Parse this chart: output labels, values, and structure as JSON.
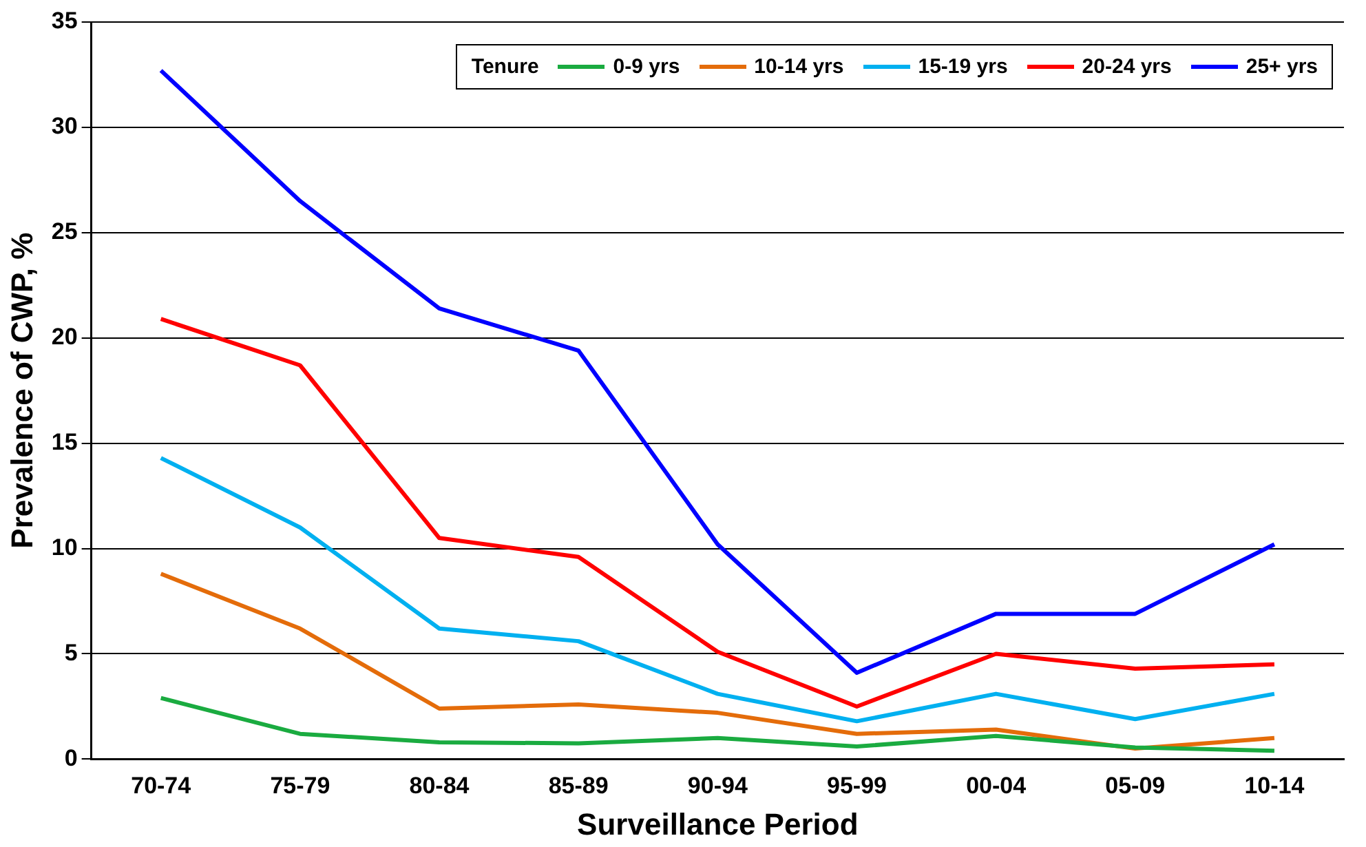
{
  "chart_data": {
    "type": "line",
    "xlabel": "Surveillance Period",
    "ylabel": "Prevalence of CWP, %",
    "legend_title": "Tenure",
    "legend": "top right",
    "grid": "y",
    "marker": "none",
    "line_style": "solid",
    "categories": [
      "70-74",
      "75-79",
      "80-84",
      "85-89",
      "90-94",
      "95-99",
      "00-04",
      "05-09",
      "10-14"
    ],
    "ylim": [
      0,
      35
    ],
    "yticks": [
      0,
      5,
      10,
      15,
      20,
      25,
      30,
      35
    ],
    "series": [
      {
        "name": "0-9 yrs",
        "color": "#1aab40",
        "values": [
          2.9,
          1.2,
          0.8,
          0.75,
          1.0,
          0.6,
          1.1,
          0.55,
          0.4
        ]
      },
      {
        "name": "10-14 yrs",
        "color": "#e46c0a",
        "values": [
          8.8,
          6.2,
          2.4,
          2.6,
          2.2,
          1.2,
          1.4,
          0.5,
          1.0
        ]
      },
      {
        "name": "15-19 yrs",
        "color": "#00b0f0",
        "values": [
          14.3,
          11.0,
          6.2,
          5.6,
          3.1,
          1.8,
          3.1,
          1.9,
          3.1
        ]
      },
      {
        "name": "20-24 yrs",
        "color": "#ff0000",
        "values": [
          20.9,
          18.7,
          10.5,
          9.6,
          5.1,
          2.5,
          5.0,
          4.3,
          4.5
        ]
      },
      {
        "name": "25+ yrs",
        "color": "#0000ff",
        "values": [
          32.7,
          26.5,
          21.4,
          19.4,
          10.2,
          4.1,
          6.9,
          6.9,
          10.2
        ]
      }
    ]
  }
}
